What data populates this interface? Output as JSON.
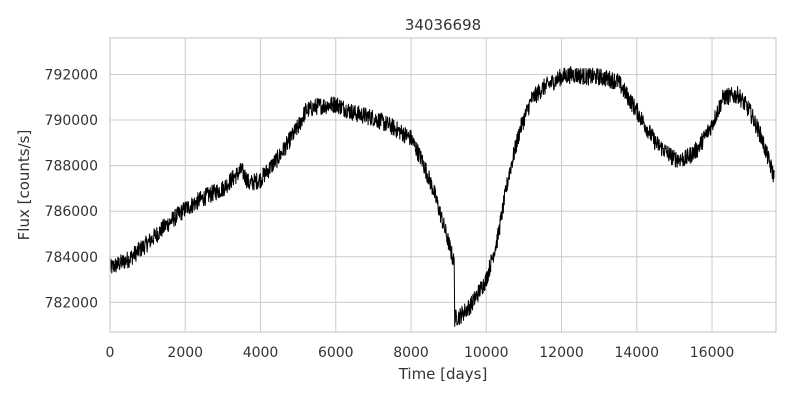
{
  "chart_data": {
    "type": "line",
    "title": "34036698",
    "xlabel": "Time [days]",
    "ylabel": "Flux [counts/s]",
    "xlim": [
      0,
      17700
    ],
    "ylim": [
      780700,
      793600
    ],
    "xticks": [
      0,
      2000,
      4000,
      6000,
      8000,
      10000,
      12000,
      14000,
      16000
    ],
    "xtick_labels": [
      "0",
      "2000",
      "4000",
      "6000",
      "8000",
      "10000",
      "12000",
      "14000",
      "16000"
    ],
    "yticks": [
      782000,
      784000,
      786000,
      788000,
      790000,
      792000
    ],
    "ytick_labels": [
      "782000",
      "784000",
      "786000",
      "788000",
      "790000",
      "792000"
    ],
    "grid": true,
    "legend": "none",
    "colors": {
      "line": "#000000",
      "grid": "#cccccc",
      "text": "#333333"
    },
    "series": [
      {
        "x": [
          0,
          500,
          1000,
          1500,
          2000,
          2500,
          3000,
          3300,
          3500,
          3700,
          4000,
          4500,
          5000,
          5200,
          5500,
          6000,
          6500,
          7000,
          7500,
          8000,
          8300,
          8600,
          8900,
          9150,
          9160,
          9300,
          9600,
          10000,
          10300,
          10600,
          10900,
          11200,
          11500,
          11800,
          12000,
          12300,
          12700,
          13000,
          13500,
          14000,
          14500,
          15000,
          15300,
          15600,
          16000,
          16300,
          16700,
          17000,
          17300,
          17650
        ],
        "y": [
          783500,
          783900,
          784600,
          785400,
          786100,
          786600,
          787000,
          787500,
          787800,
          787200,
          787400,
          788400,
          789700,
          790400,
          790600,
          790700,
          790300,
          790100,
          789700,
          789200,
          788200,
          786900,
          785200,
          783700,
          781300,
          781400,
          781900,
          783000,
          784800,
          787600,
          789600,
          790900,
          791400,
          791700,
          791900,
          792000,
          791900,
          791900,
          791700,
          790400,
          789000,
          788300,
          788300,
          788700,
          789800,
          791000,
          791100,
          790400,
          789300,
          787500
        ],
        "noise": 380
      }
    ]
  }
}
